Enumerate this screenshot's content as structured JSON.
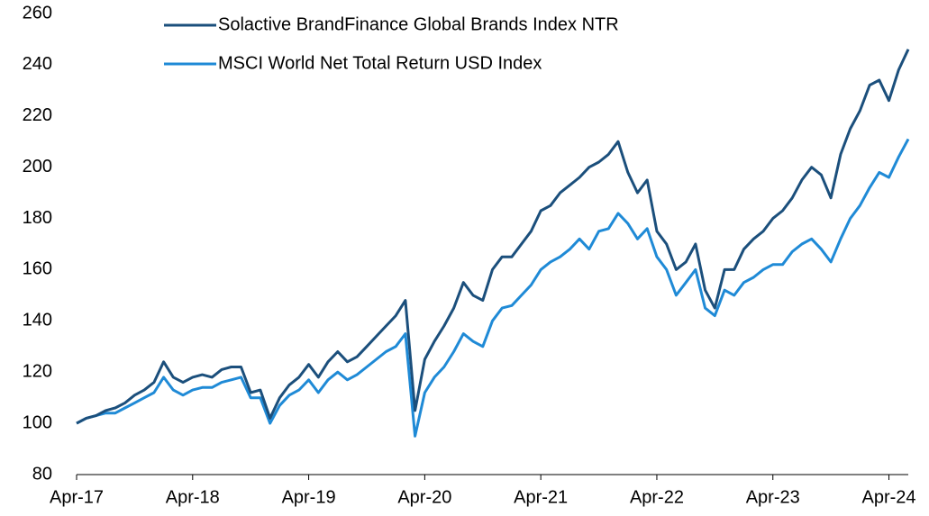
{
  "chart_data": {
    "type": "line",
    "categories": [
      "Apr-17",
      null,
      null,
      null,
      null,
      null,
      null,
      null,
      null,
      null,
      null,
      null,
      "Apr-18",
      null,
      null,
      null,
      null,
      null,
      null,
      null,
      null,
      null,
      null,
      null,
      "Apr-19",
      null,
      null,
      null,
      null,
      null,
      null,
      null,
      null,
      null,
      null,
      null,
      "Apr-20",
      null,
      null,
      null,
      null,
      null,
      null,
      null,
      null,
      null,
      null,
      null,
      "Apr-21",
      null,
      null,
      null,
      null,
      null,
      null,
      null,
      null,
      null,
      null,
      null,
      "Apr-22",
      null,
      null,
      null,
      null,
      null,
      null,
      null,
      null,
      null,
      null,
      null,
      "Apr-23",
      null,
      null,
      null,
      null,
      null,
      null,
      null,
      null,
      null,
      null,
      null,
      "Apr-24",
      null,
      null
    ],
    "series": [
      {
        "name": "Solactive BrandFinance Global Brands Index NTR",
        "color": "#1b4f7c",
        "values": [
          100,
          102,
          103,
          105,
          106,
          108,
          111,
          113,
          116,
          124,
          118,
          116,
          118,
          119,
          118,
          121,
          122,
          122,
          112,
          113,
          102,
          110,
          115,
          118,
          123,
          118,
          124,
          128,
          124,
          126,
          130,
          134,
          138,
          142,
          148,
          105,
          125,
          132,
          138,
          145,
          155,
          150,
          148,
          160,
          165,
          165,
          170,
          175,
          183,
          185,
          190,
          193,
          196,
          200,
          202,
          205,
          210,
          198,
          190,
          195,
          175,
          170,
          160,
          163,
          170,
          152,
          145,
          160,
          160,
          168,
          172,
          175,
          180,
          183,
          188,
          195,
          200,
          197,
          188,
          205,
          215,
          222,
          232,
          234,
          226,
          238,
          246
        ]
      },
      {
        "name": "MSCI World Net Total Return USD Index",
        "color": "#1f8ad6",
        "values": [
          100,
          102,
          103,
          104,
          104,
          106,
          108,
          110,
          112,
          118,
          113,
          111,
          113,
          114,
          114,
          116,
          117,
          118,
          110,
          110,
          100,
          107,
          111,
          113,
          117,
          112,
          117,
          120,
          117,
          119,
          122,
          125,
          128,
          130,
          135,
          95,
          112,
          118,
          122,
          128,
          135,
          132,
          130,
          140,
          145,
          146,
          150,
          154,
          160,
          163,
          165,
          168,
          172,
          168,
          175,
          176,
          182,
          178,
          172,
          176,
          165,
          160,
          150,
          155,
          160,
          145,
          142,
          152,
          150,
          155,
          157,
          160,
          162,
          162,
          167,
          170,
          172,
          168,
          163,
          172,
          180,
          185,
          192,
          198,
          196,
          204,
          211
        ]
      }
    ],
    "ylim": [
      80,
      260
    ],
    "yticks": [
      80,
      100,
      120,
      140,
      160,
      180,
      200,
      220,
      240,
      260
    ],
    "grid": false
  }
}
